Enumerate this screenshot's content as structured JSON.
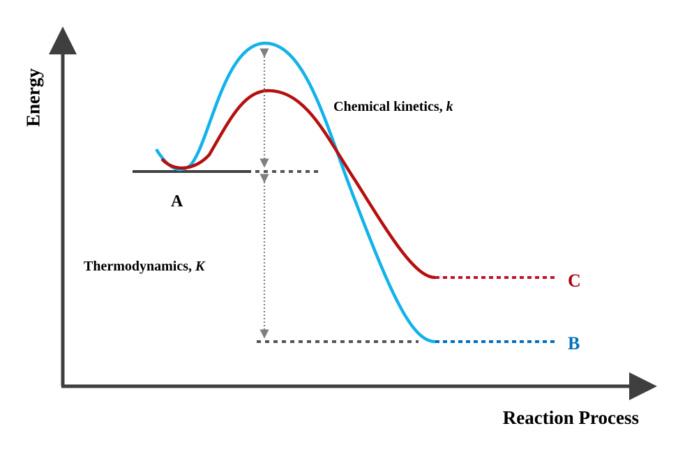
{
  "axes": {
    "y_label": "Energy",
    "x_label": "Reaction Process"
  },
  "states": {
    "reactant": "A",
    "product_c": "C",
    "product_b": "B"
  },
  "annotations": {
    "kinetics_text": "Chemical kinetics, ",
    "kinetics_symbol": "k",
    "thermo_text": "Thermodynamics, ",
    "thermo_symbol": "K"
  },
  "colors": {
    "axis": "#3f3f3f",
    "curve_b": "#12b2ea",
    "curve_c": "#b50f0f",
    "label_b": "#0070c0",
    "label_c": "#b00010",
    "guide": "#7f7f7f",
    "level_line": "#404040"
  }
}
